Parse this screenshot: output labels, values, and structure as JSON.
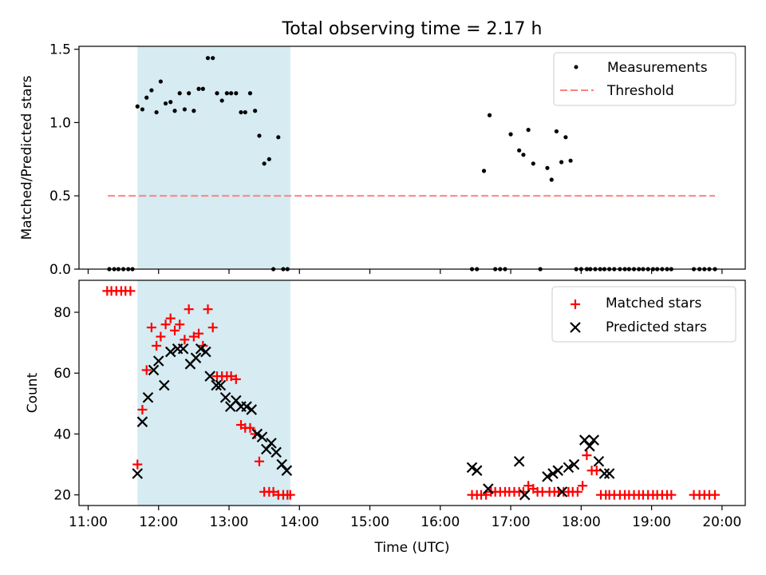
{
  "figure": {
    "title": "Total observing time = 2.17 h",
    "xlabel": "Time (UTC)"
  },
  "chart_data": [
    {
      "type": "scatter",
      "title": "Total observing time = 2.17 h",
      "xlabel": "",
      "ylabel": "Matched/Predicted stars",
      "xlim": [
        10.87,
        20.33
      ],
      "ylim": [
        0,
        1.52
      ],
      "yticks": [
        0.0,
        0.5,
        1.0,
        1.5
      ],
      "ytick_labels": [
        "0.0",
        "0.5",
        "1.0",
        "1.5"
      ],
      "shaded_region": {
        "x": [
          11.7,
          13.87
        ],
        "color": "#add8e6"
      },
      "legend": {
        "placement": "upper right",
        "entries": [
          "Measurements",
          "Threshold"
        ]
      },
      "series": [
        {
          "name": "Measurements",
          "kind": "points",
          "color": "#000000",
          "x": [
            11.3,
            11.37,
            11.43,
            11.5,
            11.57,
            11.63,
            11.7,
            11.77,
            11.83,
            11.9,
            11.97,
            12.03,
            12.1,
            12.17,
            12.23,
            12.3,
            12.37,
            12.43,
            12.5,
            12.57,
            12.63,
            12.7,
            12.77,
            12.83,
            12.9,
            12.97,
            13.03,
            13.1,
            13.17,
            13.23,
            13.3,
            13.37,
            13.43,
            13.5,
            13.57,
            13.63,
            13.7,
            13.77,
            13.83,
            16.45,
            16.52,
            16.62,
            16.7,
            16.78,
            16.85,
            16.92,
            17.0,
            17.12,
            17.18,
            17.25,
            17.32,
            17.42,
            17.52,
            17.58,
            17.65,
            17.72,
            17.78,
            17.85,
            17.93,
            18.0,
            18.08,
            18.13,
            18.2,
            18.27,
            18.33,
            18.4,
            18.47,
            18.55,
            18.62,
            18.68,
            18.75,
            18.82,
            18.88,
            18.95,
            19.02,
            19.08,
            19.15,
            19.22,
            19.28,
            19.6,
            19.68,
            19.75,
            19.82,
            19.9
          ],
          "y": [
            0,
            0,
            0,
            0,
            0,
            0,
            1.11,
            1.09,
            1.17,
            1.22,
            1.07,
            1.28,
            1.13,
            1.14,
            1.08,
            1.2,
            1.09,
            1.2,
            1.08,
            1.23,
            1.23,
            1.44,
            1.44,
            1.2,
            1.15,
            1.2,
            1.2,
            1.2,
            1.07,
            1.07,
            1.2,
            1.08,
            0.91,
            0.72,
            0.75,
            0,
            0.9,
            0,
            0,
            0,
            0,
            0.67,
            1.05,
            0,
            0,
            0,
            0.92,
            0.81,
            0.78,
            0.95,
            0.72,
            0,
            0.69,
            0.61,
            0.94,
            0.73,
            0.9,
            0.74,
            0,
            0,
            0,
            0,
            0,
            0,
            0,
            0,
            0,
            0,
            0,
            0,
            0,
            0,
            0,
            0,
            0,
            0,
            0,
            0,
            0,
            0,
            0,
            0,
            0,
            0
          ]
        },
        {
          "name": "Threshold",
          "kind": "dashed-line",
          "color": "#ff7f7f",
          "x": [
            11.28,
            19.9
          ],
          "y": [
            0.5,
            0.5
          ]
        }
      ]
    },
    {
      "type": "scatter",
      "title": "",
      "xlabel": "Time (UTC)",
      "ylabel": "Count",
      "xlim": [
        10.87,
        20.33
      ],
      "ylim": [
        16.5,
        90.5
      ],
      "yticks": [
        20,
        40,
        60,
        80
      ],
      "ytick_labels": [
        "20",
        "40",
        "60",
        "80"
      ],
      "xticks": [
        11,
        12,
        13,
        14,
        15,
        16,
        17,
        18,
        19,
        20
      ],
      "xtick_labels": [
        "11:00",
        "12:00",
        "13:00",
        "14:00",
        "15:00",
        "16:00",
        "17:00",
        "18:00",
        "19:00",
        "20:00"
      ],
      "shaded_region": {
        "x": [
          11.7,
          13.87
        ],
        "color": "#add8e6"
      },
      "legend": {
        "placement": "upper right",
        "entries": [
          "Matched stars",
          "Predicted stars"
        ]
      },
      "series": [
        {
          "name": "Matched stars",
          "kind": "plus",
          "color": "#ff0000",
          "x": [
            11.27,
            11.33,
            11.4,
            11.47,
            11.53,
            11.6,
            11.7,
            11.77,
            11.83,
            11.9,
            11.97,
            12.03,
            12.1,
            12.17,
            12.23,
            12.3,
            12.37,
            12.43,
            12.5,
            12.57,
            12.63,
            12.7,
            12.77,
            12.83,
            12.9,
            12.97,
            13.03,
            13.1,
            13.17,
            13.23,
            13.3,
            13.37,
            13.43,
            13.5,
            13.57,
            13.63,
            13.7,
            13.77,
            13.83,
            13.87,
            16.45,
            16.52,
            16.58,
            16.65,
            16.72,
            16.78,
            16.85,
            16.92,
            16.98,
            17.05,
            17.12,
            17.18,
            17.25,
            17.32,
            17.38,
            17.45,
            17.55,
            17.62,
            17.68,
            17.75,
            17.82,
            17.88,
            17.95,
            18.02,
            18.08,
            18.15,
            18.22,
            18.28,
            18.35,
            18.4,
            18.47,
            18.55,
            18.62,
            18.68,
            18.75,
            18.82,
            18.88,
            18.95,
            19.02,
            19.08,
            19.15,
            19.22,
            19.28,
            19.6,
            19.68,
            19.75,
            19.82,
            19.9
          ],
          "y": [
            87,
            87,
            87,
            87,
            87,
            87,
            30,
            48,
            61,
            75,
            69,
            72,
            76,
            78,
            74,
            76,
            71,
            81,
            72,
            73,
            69,
            81,
            75,
            59,
            59,
            59,
            59,
            58,
            43,
            42,
            42,
            40,
            31,
            21,
            21,
            21,
            20,
            20,
            20,
            20,
            20,
            20,
            20,
            20,
            21,
            21,
            21,
            21,
            21,
            21,
            21,
            21,
            23,
            22,
            21,
            21,
            21,
            21,
            21,
            21,
            21,
            21,
            21,
            23,
            33,
            28,
            28,
            20,
            20,
            20,
            20,
            20,
            20,
            20,
            20,
            20,
            20,
            20,
            20,
            20,
            20,
            20,
            20,
            20,
            20,
            20,
            20,
            20
          ]
        },
        {
          "name": "Predicted stars",
          "kind": "x",
          "color": "#000000",
          "x": [
            11.7,
            11.77,
            11.85,
            11.93,
            12.0,
            12.08,
            12.17,
            12.27,
            12.35,
            12.45,
            12.53,
            12.6,
            12.67,
            12.73,
            12.82,
            12.88,
            12.95,
            13.02,
            13.1,
            13.17,
            13.25,
            13.32,
            13.4,
            13.47,
            13.53,
            13.6,
            13.67,
            13.75,
            13.82,
            16.45,
            16.52,
            16.68,
            17.12,
            17.2,
            17.52,
            17.6,
            17.67,
            17.73,
            17.82,
            17.9,
            18.05,
            18.12,
            18.18,
            18.25,
            18.33,
            18.4
          ],
          "y": [
            27,
            44,
            52,
            61,
            64,
            56,
            67,
            68,
            68,
            63,
            65,
            68,
            67,
            59,
            56,
            56,
            52,
            49,
            51,
            49,
            49,
            48,
            40,
            39,
            35,
            37,
            34,
            30,
            28,
            29,
            28,
            22,
            31,
            20,
            26,
            27,
            28,
            21,
            29,
            30,
            38,
            36,
            38,
            31,
            27,
            27
          ]
        }
      ]
    }
  ]
}
